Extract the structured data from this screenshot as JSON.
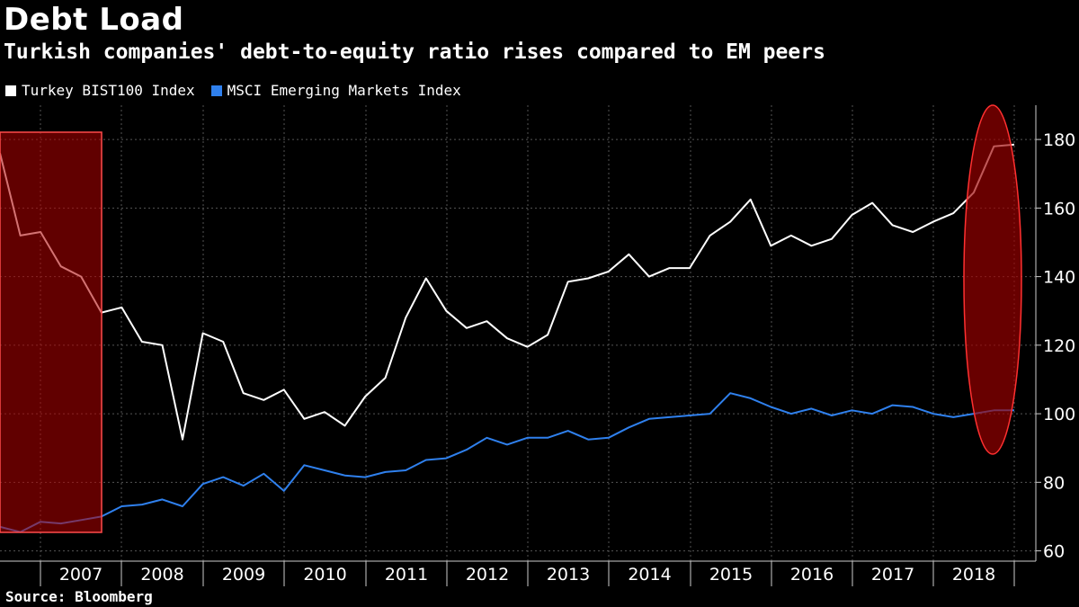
{
  "title": "Debt Load",
  "subtitle": "Turkish companies' debt-to-equity ratio rises compared to EM peers",
  "source": "Source: Bloomberg",
  "colors": {
    "background": "#000000",
    "turkey": "#ffffff",
    "msci": "#2f80ed",
    "highlight": "#8b0000",
    "grid": "#555555"
  },
  "chart_data": {
    "type": "line",
    "x_tick_labels": [
      "2007",
      "2008",
      "2009",
      "2010",
      "2011",
      "2012",
      "2013",
      "2014",
      "2015",
      "2016",
      "2017",
      "2018"
    ],
    "ylim": [
      57,
      190
    ],
    "yticks": [
      60,
      80,
      100,
      120,
      140,
      160,
      180
    ],
    "grid": true,
    "legend_position": "top-left",
    "series": [
      {
        "name": "Turkey BIST100 Index",
        "color": "#ffffff",
        "values": [
          176,
          152,
          153,
          143,
          140,
          129.5,
          131,
          121,
          120,
          92.5,
          123.5,
          121,
          106,
          104,
          107,
          98.5,
          100.5,
          96.5,
          105,
          110.5,
          128,
          139.5,
          130,
          125,
          127,
          122,
          119.5,
          123,
          138.5,
          139.5,
          141.5,
          146.5,
          140,
          142.5,
          142.5,
          152,
          156,
          162.5,
          149,
          152,
          149,
          151,
          158,
          161.5,
          155,
          153,
          156,
          158.5,
          164.5,
          178,
          178.5
        ]
      },
      {
        "name": "MSCI Emerging Markets Index",
        "color": "#2f80ed",
        "values": [
          67,
          65.5,
          68.5,
          68,
          69,
          70,
          73,
          73.5,
          75,
          73,
          79.5,
          81.5,
          79,
          82.5,
          77.5,
          85,
          83.5,
          82,
          81.5,
          83,
          83.5,
          86.5,
          87,
          89.5,
          93,
          91,
          93,
          93,
          95,
          92.5,
          93,
          96,
          98.5,
          99,
          99.5,
          100,
          106,
          104.5,
          102,
          100,
          101.5,
          99.5,
          101,
          100,
          102.5,
          102,
          100,
          99,
          100,
          101,
          101
        ]
      }
    ]
  }
}
